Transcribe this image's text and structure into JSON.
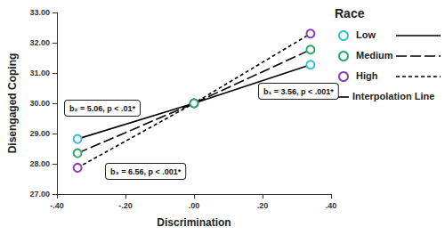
{
  "chart_data": {
    "type": "line",
    "x_label": "Discrimination",
    "y_label": "Disengaged Coping",
    "legend_title": "Race",
    "legend_note": "Interpolation Line",
    "x": [
      -0.34,
      0,
      0.34
    ],
    "series": [
      {
        "name": "Low",
        "color": "#3bbfcf",
        "marker": "circle",
        "line_style": "solid",
        "values": [
          28.82,
          30.0,
          31.27
        ]
      },
      {
        "name": "Medium",
        "color": "#2ea86a",
        "marker": "circle",
        "line_style": "dashed",
        "values": [
          28.35,
          30.0,
          31.77
        ]
      },
      {
        "name": "High",
        "color": "#8b3fb5",
        "marker": "circle",
        "line_style": "dotted",
        "values": [
          27.87,
          30.0,
          32.3
        ]
      }
    ],
    "annotations": [
      "b₁ = 3.56, p < .001*",
      "b₂ = 5.06, p < .01*",
      "b₃ = 6.56, p < .001*"
    ],
    "xlim": [
      -0.4,
      0.4
    ],
    "xticks": [
      {
        "value": -0.4,
        "label": "-.40"
      },
      {
        "value": -0.2,
        "label": "-.20"
      },
      {
        "value": 0,
        "label": ".00"
      },
      {
        "value": 0.2,
        "label": ".20"
      },
      {
        "value": 0.4,
        "label": ".40"
      }
    ],
    "ylim": [
      27,
      33
    ],
    "yticks": [
      {
        "value": 27,
        "label": "27.00"
      },
      {
        "value": 28,
        "label": "28.00"
      },
      {
        "value": 29,
        "label": "29.00"
      },
      {
        "value": 30,
        "label": "30.00"
      },
      {
        "value": 31,
        "label": "31.00"
      },
      {
        "value": 32,
        "label": "32.00"
      },
      {
        "value": 33,
        "label": "33.00"
      }
    ],
    "grid": false
  }
}
